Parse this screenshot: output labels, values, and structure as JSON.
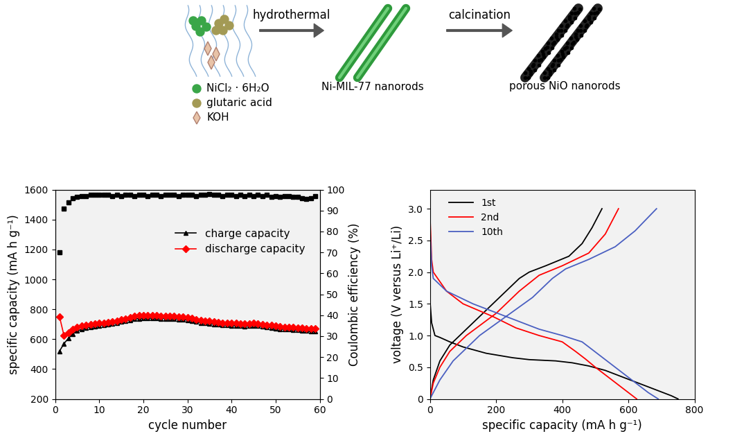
{
  "diagram": {
    "reagents": [
      "NiCl₂ · 6H₂O",
      "glutaric acid",
      "KOH"
    ],
    "steps": [
      "hydrothermal",
      "calcination"
    ],
    "products": [
      "Ni-MIL-77 nanorods",
      "porous NiO nanorods"
    ]
  },
  "chart_data": [
    {
      "type": "line",
      "x_label": "cycle number",
      "y_label": "specific capacity (mA h g⁻¹)",
      "y2_label": "Coulombic efficiency (%)",
      "xlim": [
        0,
        60
      ],
      "xticks": [
        0,
        10,
        20,
        30,
        40,
        50,
        60
      ],
      "ylim": [
        200,
        1600
      ],
      "yticks": [
        200,
        400,
        600,
        800,
        1000,
        1200,
        1400,
        1600
      ],
      "y2lim": [
        0,
        100
      ],
      "y2ticks": [
        0,
        10,
        20,
        30,
        40,
        50,
        60,
        70,
        80,
        90,
        100
      ],
      "grid": false,
      "legend": "upper right",
      "x": [
        1,
        2,
        3,
        4,
        5,
        6,
        7,
        8,
        9,
        10,
        11,
        12,
        13,
        14,
        15,
        16,
        17,
        18,
        19,
        20,
        21,
        22,
        23,
        24,
        25,
        26,
        27,
        28,
        29,
        30,
        31,
        32,
        33,
        34,
        35,
        36,
        37,
        38,
        39,
        40,
        41,
        42,
        43,
        44,
        45,
        46,
        47,
        48,
        49,
        50,
        51,
        52,
        53,
        54,
        55,
        56,
        57,
        58,
        59
      ],
      "series": [
        {
          "name": "charge capacity",
          "color": "black",
          "marker": "triangle",
          "line_style": "solid",
          "values": [
            520,
            570,
            605,
            635,
            655,
            665,
            675,
            680,
            685,
            690,
            695,
            698,
            702,
            708,
            715,
            722,
            728,
            735,
            738,
            740,
            740,
            740,
            740,
            738,
            738,
            736,
            735,
            733,
            730,
            728,
            722,
            715,
            710,
            706,
            703,
            700,
            697,
            695,
            692,
            690,
            690,
            688,
            686,
            688,
            690,
            688,
            684,
            680,
            676,
            672,
            668,
            665,
            664,
            662,
            660,
            658,
            655,
            650,
            652
          ]
        },
        {
          "name": "discharge capacity",
          "color": "red",
          "marker": "diamond",
          "line_style": "solid",
          "values": [
            750,
            625,
            645,
            665,
            680,
            688,
            695,
            700,
            703,
            707,
            710,
            713,
            717,
            723,
            730,
            738,
            745,
            752,
            758,
            760,
            760,
            758,
            757,
            756,
            755,
            754,
            752,
            750,
            748,
            745,
            740,
            733,
            728,
            724,
            720,
            716,
            713,
            710,
            708,
            706,
            706,
            705,
            703,
            705,
            707,
            705,
            700,
            696,
            692,
            688,
            684,
            681,
            680,
            678,
            677,
            675,
            673,
            670,
            672
          ]
        },
        {
          "color": "black",
          "marker": "square",
          "line_style": "none",
          "axis": "y2",
          "values": [
            70,
            91,
            94,
            96,
            96.5,
            97,
            97,
            97.5,
            97.5,
            97.5,
            97.5,
            97.5,
            97,
            97.5,
            97,
            97.5,
            97.5,
            97,
            97.5,
            97.5,
            97,
            97.5,
            97.5,
            97,
            97.5,
            97.5,
            97.5,
            97,
            97.5,
            97.5,
            97.5,
            97,
            97.5,
            97.5,
            98,
            97.5,
            97.5,
            97,
            97.5,
            97.5,
            97,
            97.5,
            97,
            97.5,
            97,
            97.5,
            97,
            97.5,
            96.5,
            97,
            96.5,
            97,
            97,
            96.5,
            96.5,
            96,
            95.5,
            96,
            97
          ]
        }
      ]
    },
    {
      "type": "line",
      "x_label": "specific capacity (mA h g⁻¹)",
      "y_label": "voltage (V versus Li⁺/Li)",
      "xlim": [
        0,
        800
      ],
      "xticks": [
        0,
        200,
        400,
        600,
        800
      ],
      "ylim": [
        0,
        3.3
      ],
      "yticks": [
        0,
        0.5,
        {
          "value": 1,
          "label": "1.0"
        },
        1.5,
        {
          "value": 2,
          "label": "2.0"
        },
        2.5,
        {
          "value": 3,
          "label": "3.0"
        }
      ],
      "grid": false,
      "legend": "upper left",
      "series": [
        {
          "name": "1st",
          "color": "black",
          "x": [
            0,
            5,
            15,
            30,
            60,
            100,
            170,
            250,
            300,
            380,
            430,
            480,
            530,
            580,
            630,
            680,
            730,
            750,
            null,
            0,
            10,
            30,
            60,
            90,
            150,
            210,
            270,
            300,
            350,
            420,
            460,
            490,
            520
          ],
          "values": [
            1.55,
            1.2,
            1.0,
            0.97,
            0.9,
            0.82,
            0.72,
            0.65,
            0.62,
            0.6,
            0.57,
            0.52,
            0.45,
            0.35,
            0.25,
            0.15,
            0.05,
            0.0,
            null,
            0,
            0.3,
            0.6,
            0.85,
            1.0,
            1.3,
            1.6,
            1.9,
            2.0,
            2.1,
            2.25,
            2.45,
            2.7,
            3.0
          ]
        },
        {
          "name": "2nd",
          "color": "red",
          "x": [
            0,
            5,
            10,
            50,
            100,
            190,
            260,
            330,
            400,
            440,
            470,
            500,
            550,
            600,
            625,
            null,
            0,
            10,
            30,
            60,
            110,
            200,
            270,
            330,
            400,
            480,
            530,
            570
          ],
          "values": [
            2.9,
            2.2,
            2.0,
            1.7,
            1.5,
            1.3,
            1.12,
            1.0,
            0.9,
            0.75,
            0.63,
            0.5,
            0.3,
            0.1,
            0.0,
            null,
            0,
            0.25,
            0.5,
            0.75,
            1.0,
            1.35,
            1.7,
            1.95,
            2.1,
            2.3,
            2.6,
            3.0
          ]
        },
        {
          "name": "10th",
          "color": "#4a5fc1",
          "x": [
            0,
            5,
            10,
            50,
            130,
            230,
            330,
            400,
            460,
            510,
            560,
            610,
            660,
            690,
            null,
            0,
            30,
            70,
            150,
            230,
            310,
            370,
            410,
            480,
            560,
            620,
            685
          ],
          "values": [
            2.7,
            2.1,
            1.9,
            1.7,
            1.5,
            1.3,
            1.1,
            1.0,
            0.9,
            0.7,
            0.5,
            0.3,
            0.1,
            0.0,
            null,
            0,
            0.3,
            0.6,
            1.0,
            1.3,
            1.6,
            1.9,
            2.05,
            2.2,
            2.4,
            2.65,
            3.0
          ]
        }
      ]
    }
  ]
}
